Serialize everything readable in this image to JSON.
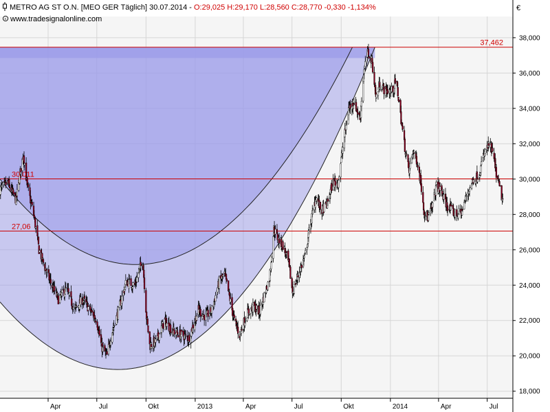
{
  "header": {
    "symbol_icon": "candlestick-icon",
    "prefix": "METRO AG ST O.N. [MEO GER  Täglich] 30.07.2014 - ",
    "ohlc": "O:29,025  H:29,170  L:28,560  C:28,770  -0,330  -1,134%",
    "source_icon": "copyright-icon",
    "source": "www.tradesignalonline.com",
    "currency": "€"
  },
  "colors": {
    "background": "#ffffff",
    "plot_background": "#f5f5f5",
    "arc_fill": "#9b9bea",
    "level_line": "#cc0000",
    "level_text": "#d00000",
    "candle_up": "#ffffff",
    "candle_down": "#8b0020",
    "wick": "#000000"
  },
  "chart_data": {
    "type": "candlestick",
    "title": "METRO AG ST O.N. [MEO GER  Täglich] 30.07.2014",
    "y_axis_position": "right",
    "ylim": [
      17.6,
      39.2
    ],
    "xlim": [
      "2012-01-02",
      "2014-08-18"
    ],
    "grid": true,
    "y_ticks": [
      "18,000",
      "20,000",
      "22,000",
      "24,000",
      "26,000",
      "28,000",
      "30,000",
      "32,000",
      "34,000",
      "36,000",
      "38,000"
    ],
    "y_tick_values": [
      18,
      20,
      22,
      24,
      26,
      28,
      30,
      32,
      34,
      36,
      38
    ],
    "x_ticks": [
      {
        "label": "Apr",
        "date": "2012-04-01"
      },
      {
        "label": "Jul",
        "date": "2012-07-01"
      },
      {
        "label": "Okt",
        "date": "2012-10-01"
      },
      {
        "label": "2013",
        "date": "2013-01-01"
      },
      {
        "label": "Apr",
        "date": "2013-04-01"
      },
      {
        "label": "Jul",
        "date": "2013-07-01"
      },
      {
        "label": "Okt",
        "date": "2013-10-01"
      },
      {
        "label": "2014",
        "date": "2014-01-01"
      },
      {
        "label": "Apr",
        "date": "2014-04-01"
      },
      {
        "label": "Jul",
        "date": "2014-07-01"
      }
    ],
    "levels": [
      {
        "label": "37,462",
        "value": 37.462,
        "label_at": "right"
      },
      {
        "label": "30,011",
        "value": 30.011,
        "label_at": "left"
      },
      {
        "label": "27,06",
        "value": 27.06,
        "label_at": "left"
      }
    ],
    "band_top": {
      "from": 37.462,
      "to": 36.85
    },
    "arcs": [
      {
        "name": "inner",
        "start": {
          "date": "2012-01-02",
          "y": 30.0
        },
        "bottom": {
          "date": "2012-12-20",
          "y": 25.9
        },
        "end": {
          "date": "2013-10-22",
          "y": 37.462
        }
      },
      {
        "name": "outer",
        "start": {
          "date": "2012-01-02",
          "y": 23.05
        },
        "bottom": {
          "date": "2012-09-25",
          "y": 19.4
        },
        "end": {
          "date": "2013-12-03",
          "y": 37.462
        }
      }
    ],
    "price_path": [
      [
        "2012-01-02",
        29.4
      ],
      [
        "2012-01-16",
        29.8
      ],
      [
        "2012-02-01",
        28.8
      ],
      [
        "2012-02-10",
        30.6
      ],
      [
        "2012-02-15",
        31.4
      ],
      [
        "2012-02-22",
        29.6
      ],
      [
        "2012-03-05",
        28.0
      ],
      [
        "2012-03-15",
        26.0
      ],
      [
        "2012-03-26",
        25.0
      ],
      [
        "2012-04-05",
        24.2
      ],
      [
        "2012-04-20",
        23.2
      ],
      [
        "2012-05-05",
        23.8
      ],
      [
        "2012-05-20",
        22.6
      ],
      [
        "2012-06-05",
        23.2
      ],
      [
        "2012-06-20",
        22.5
      ],
      [
        "2012-07-01",
        22.0
      ],
      [
        "2012-07-10",
        20.5
      ],
      [
        "2012-07-20",
        20.0
      ],
      [
        "2012-07-28",
        21.2
      ],
      [
        "2012-08-10",
        22.5
      ],
      [
        "2012-08-25",
        24.2
      ],
      [
        "2012-09-10",
        24.0
      ],
      [
        "2012-09-20",
        25.0
      ],
      [
        "2012-09-25",
        25.4
      ],
      [
        "2012-10-02",
        22.2
      ],
      [
        "2012-10-08",
        20.6
      ],
      [
        "2012-10-20",
        20.8
      ],
      [
        "2012-11-05",
        22.0
      ],
      [
        "2012-11-20",
        21.4
      ],
      [
        "2012-12-05",
        21.2
      ],
      [
        "2012-12-20",
        21.0
      ],
      [
        "2013-01-07",
        22.6
      ],
      [
        "2013-01-20",
        22.2
      ],
      [
        "2013-02-01",
        22.6
      ],
      [
        "2013-02-15",
        24.2
      ],
      [
        "2013-02-25",
        24.6
      ],
      [
        "2013-03-05",
        23.5
      ],
      [
        "2013-03-15",
        22.0
      ],
      [
        "2013-03-25",
        21.2
      ],
      [
        "2013-04-08",
        22.4
      ],
      [
        "2013-04-20",
        22.8
      ],
      [
        "2013-05-01",
        22.5
      ],
      [
        "2013-05-10",
        23.4
      ],
      [
        "2013-05-20",
        24.4
      ],
      [
        "2013-05-28",
        27.2
      ],
      [
        "2013-06-05",
        26.6
      ],
      [
        "2013-06-15",
        26.2
      ],
      [
        "2013-06-25",
        25.2
      ],
      [
        "2013-07-02",
        23.6
      ],
      [
        "2013-07-15",
        24.8
      ],
      [
        "2013-07-25",
        25.6
      ],
      [
        "2013-08-05",
        27.6
      ],
      [
        "2013-08-15",
        29.0
      ],
      [
        "2013-08-25",
        28.2
      ],
      [
        "2013-09-05",
        28.6
      ],
      [
        "2013-09-15",
        29.8
      ],
      [
        "2013-09-25",
        29.8
      ],
      [
        "2013-10-05",
        32.0
      ],
      [
        "2013-10-15",
        34.0
      ],
      [
        "2013-10-25",
        34.4
      ],
      [
        "2013-11-05",
        33.4
      ],
      [
        "2013-11-12",
        36.0
      ],
      [
        "2013-11-20",
        37.2
      ],
      [
        "2013-11-28",
        36.6
      ],
      [
        "2013-12-05",
        34.6
      ],
      [
        "2013-12-12",
        35.4
      ],
      [
        "2013-12-22",
        35.0
      ],
      [
        "2014-01-05",
        35.0
      ],
      [
        "2014-01-12",
        35.6
      ],
      [
        "2014-01-20",
        33.6
      ],
      [
        "2014-01-28",
        31.8
      ],
      [
        "2014-02-05",
        30.4
      ],
      [
        "2014-02-12",
        31.6
      ],
      [
        "2014-02-20",
        31.0
      ],
      [
        "2014-02-27",
        29.8
      ],
      [
        "2014-03-05",
        28.2
      ],
      [
        "2014-03-12",
        27.8
      ],
      [
        "2014-03-20",
        28.4
      ],
      [
        "2014-03-28",
        29.6
      ],
      [
        "2014-04-05",
        29.4
      ],
      [
        "2014-04-15",
        28.6
      ],
      [
        "2014-04-25",
        28.2
      ],
      [
        "2014-05-05",
        28.0
      ],
      [
        "2014-05-15",
        28.2
      ],
      [
        "2014-05-25",
        29.2
      ],
      [
        "2014-06-05",
        30.0
      ],
      [
        "2014-06-15",
        30.2
      ],
      [
        "2014-06-25",
        31.4
      ],
      [
        "2014-07-05",
        32.0
      ],
      [
        "2014-07-12",
        31.4
      ],
      [
        "2014-07-20",
        30.0
      ],
      [
        "2014-07-30",
        28.77
      ]
    ]
  }
}
